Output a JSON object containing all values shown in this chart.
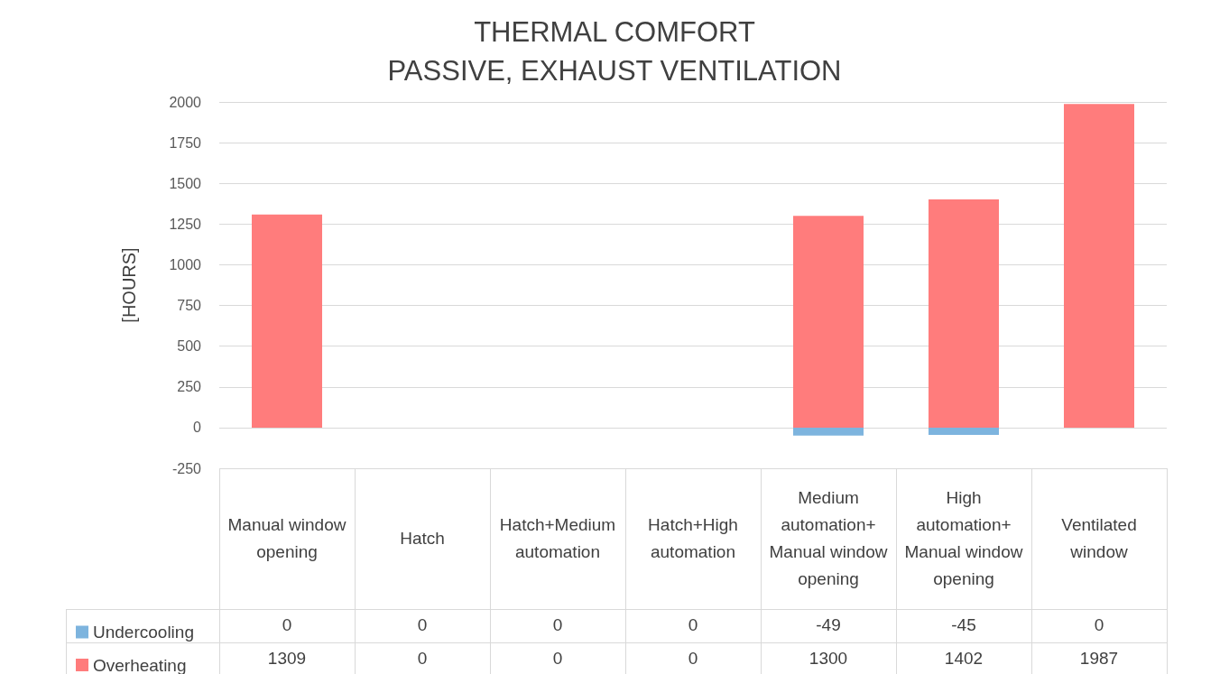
{
  "chart_data": {
    "type": "bar",
    "title": "THERMAL COMFORT",
    "subtitle": "PASSIVE, EXHAUST VENTILATION",
    "ylabel": "[HOURS]",
    "categories": [
      "Manual window opening",
      "Hatch",
      "Hatch+Medium automation",
      "Hatch+High automation",
      "Medium automation+ Manual window opening",
      "High automation+ Manual window opening",
      "Ventilated window"
    ],
    "series": [
      {
        "name": "Undercooling",
        "color": "#7db4de",
        "values": [
          0,
          0,
          0,
          0,
          -49,
          -45,
          0
        ]
      },
      {
        "name": "Overheating",
        "color": "#ff7c7c",
        "values": [
          1309,
          0,
          0,
          0,
          1300,
          1402,
          1987
        ]
      }
    ],
    "stacked": true,
    "ylim": [
      -250,
      2000
    ],
    "yticks": [
      -250,
      0,
      250,
      500,
      750,
      1000,
      1250,
      1500,
      1750,
      2000
    ],
    "grid": "y",
    "legend": "bottom left",
    "data_labels": true
  }
}
